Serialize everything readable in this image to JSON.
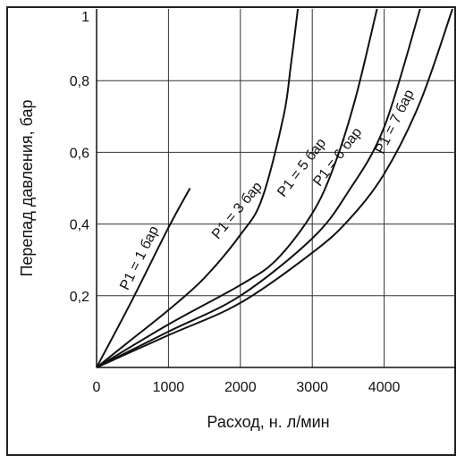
{
  "chart_data": {
    "type": "line",
    "title": "",
    "xlabel": "Расход, н. л/мин",
    "ylabel": "Перепад давления, бар",
    "xlim": [
      0,
      5000
    ],
    "ylim": [
      0,
      1
    ],
    "grid": true,
    "xticks": [
      {
        "value": 0,
        "label": "0"
      },
      {
        "value": 1000,
        "label": "1000"
      },
      {
        "value": 2000,
        "label": "2000"
      },
      {
        "value": 3000,
        "label": "3000"
      },
      {
        "value": 4000,
        "label": "4000"
      }
    ],
    "yticks": [
      {
        "value": 0.2,
        "label": "0,2"
      },
      {
        "value": 0.4,
        "label": "0,4"
      },
      {
        "value": 0.6,
        "label": "0,6"
      },
      {
        "value": 0.8,
        "label": "0,8"
      },
      {
        "value": 1.0,
        "label": "1"
      }
    ],
    "series": [
      {
        "name": "P1 = 1 бар",
        "x": [
          0,
          500,
          1000,
          1300
        ],
        "y": [
          0,
          0.19,
          0.39,
          0.5
        ],
        "label_at": [
          650,
          0.3
        ]
      },
      {
        "name": "P1 = 3 бар",
        "x": [
          0,
          500,
          1000,
          1500,
          2000,
          2300,
          2600,
          2700,
          2800
        ],
        "y": [
          0,
          0.08,
          0.16,
          0.25,
          0.37,
          0.47,
          0.7,
          0.84,
          1.0
        ],
        "label_at": [
          2000,
          0.43
        ]
      },
      {
        "name": "P1 = 5 бар",
        "x": [
          0,
          1000,
          2000,
          2500,
          3000,
          3300,
          3600,
          3900
        ],
        "y": [
          0,
          0.12,
          0.23,
          0.3,
          0.43,
          0.56,
          0.75,
          1.0
        ],
        "label_at": [
          2900,
          0.55
        ]
      },
      {
        "name": "P1 = 6 бар",
        "x": [
          0,
          1000,
          2000,
          3000,
          3500,
          4000,
          4500
        ],
        "y": [
          0,
          0.1,
          0.2,
          0.36,
          0.49,
          0.67,
          1.0
        ],
        "label_at": [
          3400,
          0.58
        ]
      },
      {
        "name": "P1 = 7 бар",
        "x": [
          0,
          1000,
          2000,
          3000,
          3500,
          4000,
          4500,
          4950
        ],
        "y": [
          0,
          0.09,
          0.18,
          0.32,
          0.41,
          0.54,
          0.74,
          1.0
        ],
        "label_at": [
          4200,
          0.68
        ]
      }
    ]
  }
}
